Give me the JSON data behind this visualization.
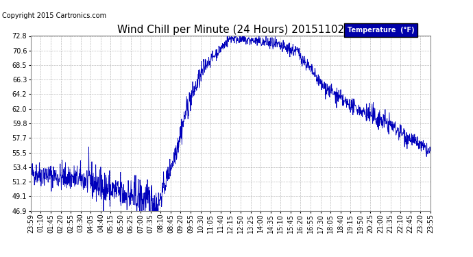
{
  "title": "Wind Chill per Minute (24 Hours) 20151102",
  "copyright": "Copyright 2015 Cartronics.com",
  "legend_label": "Temperature  (°F)",
  "ylim": [
    46.9,
    72.8
  ],
  "yticks": [
    46.9,
    49.1,
    51.2,
    53.4,
    55.5,
    57.7,
    59.8,
    62.0,
    64.2,
    66.3,
    68.5,
    70.6,
    72.8
  ],
  "line_color": "#0000bb",
  "bg_color": "#ffffff",
  "grid_color": "#aaaaaa",
  "title_fontsize": 11,
  "copyright_fontsize": 7,
  "tick_fontsize": 7,
  "legend_bg": "#0000aa",
  "legend_text_color": "#ffffff",
  "xtick_labels": [
    "23:59",
    "01:10",
    "01:45",
    "02:20",
    "02:55",
    "03:30",
    "04:05",
    "04:40",
    "05:15",
    "05:50",
    "06:25",
    "07:00",
    "07:35",
    "08:10",
    "08:45",
    "09:20",
    "09:55",
    "10:30",
    "11:05",
    "11:40",
    "12:15",
    "12:50",
    "13:25",
    "14:00",
    "14:35",
    "15:10",
    "15:45",
    "16:20",
    "16:55",
    "17:30",
    "18:05",
    "18:40",
    "19:15",
    "19:50",
    "20:25",
    "21:00",
    "21:35",
    "22:10",
    "22:45",
    "23:20",
    "23:55"
  ]
}
